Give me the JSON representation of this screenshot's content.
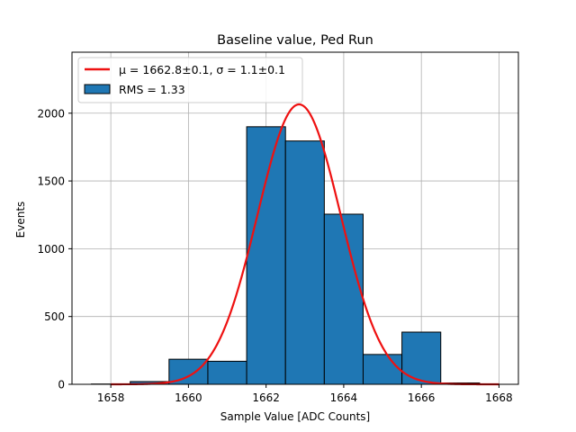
{
  "chart_data": {
    "type": "bar",
    "title": "Baseline value, Ped Run",
    "xlabel": "Sample Value [ADC Counts]",
    "ylabel": "Events",
    "xlim": [
      1657.0,
      1668.5
    ],
    "ylim": [
      0,
      2450
    ],
    "xticks": [
      1658,
      1660,
      1662,
      1664,
      1666,
      1668
    ],
    "yticks": [
      0,
      500,
      1000,
      1500,
      2000
    ],
    "grid": true,
    "legend_position": "top-left",
    "histogram": {
      "name": "RMS = 1.33",
      "color": "#1f77b4",
      "edgecolor": "#000000",
      "bin_edges": [
        1657.5,
        1658.5,
        1659.5,
        1660.5,
        1661.5,
        1662.5,
        1663.5,
        1664.5,
        1665.5,
        1666.5,
        1667.5,
        1668.0
      ],
      "counts": [
        2,
        20,
        185,
        170,
        1900,
        1795,
        1255,
        220,
        385,
        10,
        1
      ]
    },
    "fit": {
      "name": "μ = 1662.8±0.1, σ = 1.1±0.1",
      "color": "#ee1111",
      "mu": 1662.85,
      "sigma": 1.07,
      "amplitude": 2065,
      "x_range": [
        1658.0,
        1668.0
      ]
    }
  }
}
